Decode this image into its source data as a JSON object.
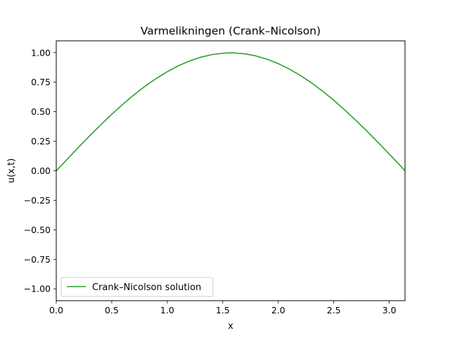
{
  "chart_data": {
    "type": "line",
    "title": "Varmelikningen (Crank–Nicolson)",
    "xlabel": "x",
    "ylabel": "u(x,t)",
    "xlim": [
      0,
      3.14159
    ],
    "ylim": [
      -1.1,
      1.1
    ],
    "xticks": [
      "0.0",
      "0.5",
      "1.0",
      "1.5",
      "2.0",
      "2.5",
      "3.0"
    ],
    "xtick_values": [
      0,
      0.5,
      1.0,
      1.5,
      2.0,
      2.5,
      3.0
    ],
    "yticks": [
      "−1.00",
      "−0.75",
      "−0.50",
      "−0.25",
      "0.00",
      "0.25",
      "0.50",
      "0.75",
      "1.00"
    ],
    "ytick_values": [
      -1.0,
      -0.75,
      -0.5,
      -0.25,
      0.0,
      0.25,
      0.5,
      0.75,
      1.0
    ],
    "grid": false,
    "legend_position": "lower-left",
    "series": [
      {
        "name": "Crank–Nicolson solution",
        "color": "#2ca02c",
        "x": [
          0.0,
          0.1,
          0.2,
          0.3,
          0.4,
          0.5,
          0.6,
          0.7,
          0.8,
          0.9,
          1.0,
          1.1,
          1.2,
          1.3,
          1.4,
          1.5,
          1.571,
          1.6,
          1.7,
          1.8,
          1.9,
          2.0,
          2.1,
          2.2,
          2.3,
          2.4,
          2.5,
          2.6,
          2.7,
          2.8,
          2.9,
          3.0,
          3.1,
          3.1416
        ],
        "y": [
          0.0,
          0.099,
          0.198,
          0.295,
          0.388,
          0.478,
          0.563,
          0.643,
          0.716,
          0.781,
          0.839,
          0.889,
          0.929,
          0.961,
          0.983,
          0.995,
          0.998,
          0.998,
          0.99,
          0.972,
          0.944,
          0.907,
          0.861,
          0.806,
          0.744,
          0.674,
          0.597,
          0.514,
          0.426,
          0.334,
          0.239,
          0.141,
          0.042,
          0.0
        ]
      }
    ]
  }
}
